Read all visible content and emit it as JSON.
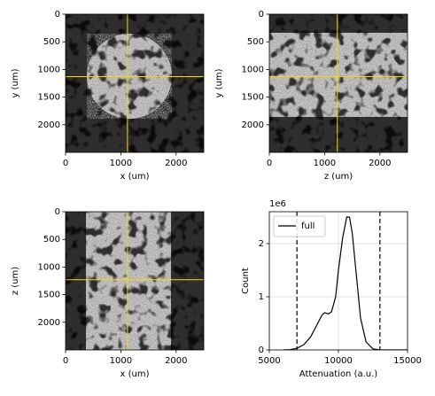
{
  "chart_data": [
    {
      "type": "image",
      "xlabel": "x (um)",
      "ylabel": "y (um)",
      "xlim": [
        0,
        2500
      ],
      "ylim": [
        2500,
        0
      ],
      "xticks": [
        0,
        1000,
        2000
      ],
      "yticks": [
        0,
        500,
        1000,
        1500,
        2000
      ],
      "crosshair": {
        "x": 1120,
        "y": 1130,
        "color": "#ffd700"
      }
    },
    {
      "type": "image",
      "xlabel": "z (um)",
      "ylabel": "y (um)",
      "xlim": [
        0,
        2500
      ],
      "ylim": [
        2500,
        0
      ],
      "xticks": [
        0,
        1000,
        2000
      ],
      "yticks": [
        0,
        500,
        1000,
        1500,
        2000
      ],
      "crosshair": {
        "x": 1230,
        "y": 1130,
        "color": "#ffd700"
      }
    },
    {
      "type": "image",
      "xlabel": "x (um)",
      "ylabel": "z (um)",
      "xlim": [
        0,
        2500
      ],
      "ylim": [
        2500,
        0
      ],
      "xticks": [
        0,
        1000,
        2000
      ],
      "yticks": [
        0,
        500,
        1000,
        1500,
        2000
      ],
      "crosshair": {
        "x": 1120,
        "y": 1230,
        "color": "#ffd700"
      }
    },
    {
      "type": "line",
      "xlabel": "Attenuation (a.u.)",
      "ylabel": "Count",
      "y_offset_label": "1e6",
      "xlim": [
        5000,
        15000
      ],
      "ylim": [
        0,
        2.6
      ],
      "xticks": [
        5000,
        10000,
        15000
      ],
      "yticks": [
        0,
        1,
        2
      ],
      "grid": true,
      "legend": "upper left",
      "x": [
        6000,
        6500,
        7000,
        7500,
        8000,
        8500,
        8800,
        9000,
        9300,
        9500,
        9800,
        10000,
        10300,
        10600,
        10800,
        11000,
        11300,
        11600,
        12000,
        12500,
        13000,
        15000
      ],
      "series": [
        {
          "name": "full",
          "color": "#000000",
          "values": [
            0,
            0.005,
            0.03,
            0.1,
            0.25,
            0.5,
            0.65,
            0.7,
            0.68,
            0.72,
            1.0,
            1.5,
            2.1,
            2.5,
            2.5,
            2.2,
            1.4,
            0.6,
            0.15,
            0.02,
            0,
            0
          ]
        }
      ],
      "vlines": [
        7000,
        13000
      ],
      "vline_color": "#333333"
    }
  ]
}
